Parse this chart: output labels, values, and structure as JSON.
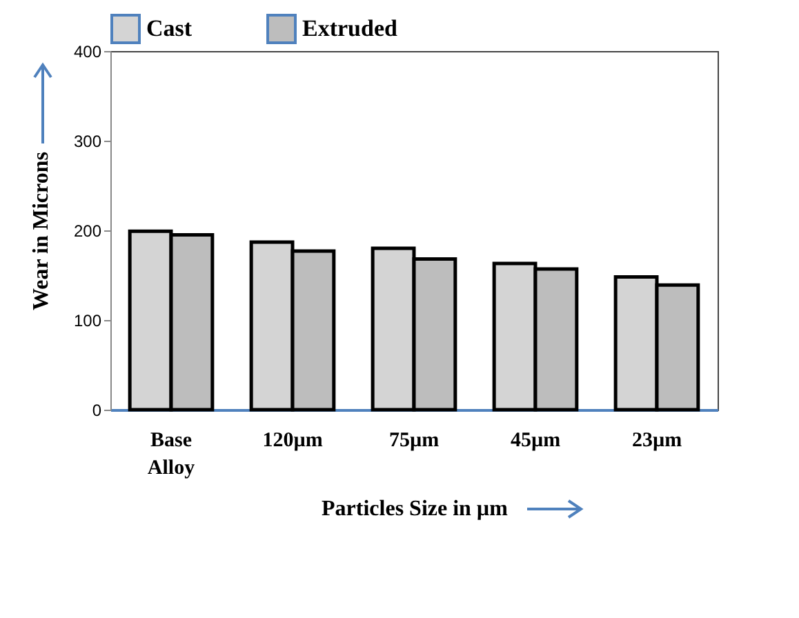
{
  "chart_data": {
    "type": "bar",
    "xlabel": "Particles Size in µm",
    "ylabel": "Wear in Microns",
    "categories": [
      "Base Alloy",
      "120µm",
      "75µm",
      "45µm",
      "23µm"
    ],
    "series": [
      {
        "name": "Cast",
        "color": "#d4d4d4",
        "values": [
          199,
          187,
          180,
          163,
          148
        ]
      },
      {
        "name": "Extruded",
        "color": "#bdbdbd",
        "values": [
          195,
          177,
          168,
          157,
          139
        ]
      }
    ],
    "ylim": [
      0,
      400
    ],
    "yticks": [
      0,
      100,
      200,
      300,
      400
    ],
    "grid": false,
    "legend": "top"
  }
}
